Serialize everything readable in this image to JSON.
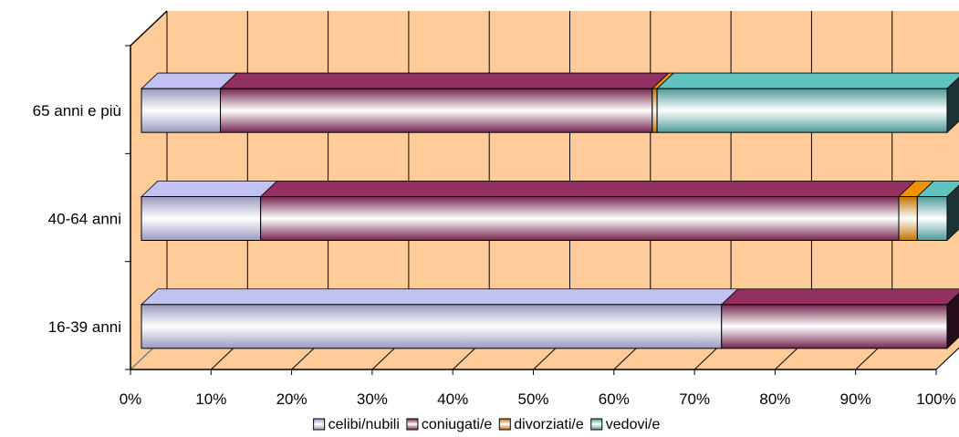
{
  "chart_data": {
    "type": "bar",
    "orientation": "horizontal",
    "stacked": "percent",
    "style": "3d",
    "categories": [
      "16-39 anni",
      "40-64 anni",
      "65 anni e più"
    ],
    "series": [
      {
        "name": "celibi/nubili",
        "values": [
          72.0,
          14.8,
          9.8
        ],
        "color": "#ccccff"
      },
      {
        "name": "coniugati/e",
        "values": [
          28.0,
          79.2,
          53.6
        ],
        "color": "#993366"
      },
      {
        "name": "divorziati/e",
        "values": [
          0.0,
          2.3,
          0.6
        ],
        "color": "#ff9900"
      },
      {
        "name": "vedovi/e",
        "values": [
          0.0,
          3.7,
          36.0
        ],
        "color": "#66cccc"
      }
    ],
    "x_ticks": [
      "0%",
      "10%",
      "20%",
      "30%",
      "40%",
      "50%",
      "60%",
      "70%",
      "80%",
      "90%",
      "100%"
    ],
    "xlim": [
      0,
      100
    ],
    "grid": true,
    "plot_background": "#ffcc99",
    "legend_position": "bottom"
  }
}
